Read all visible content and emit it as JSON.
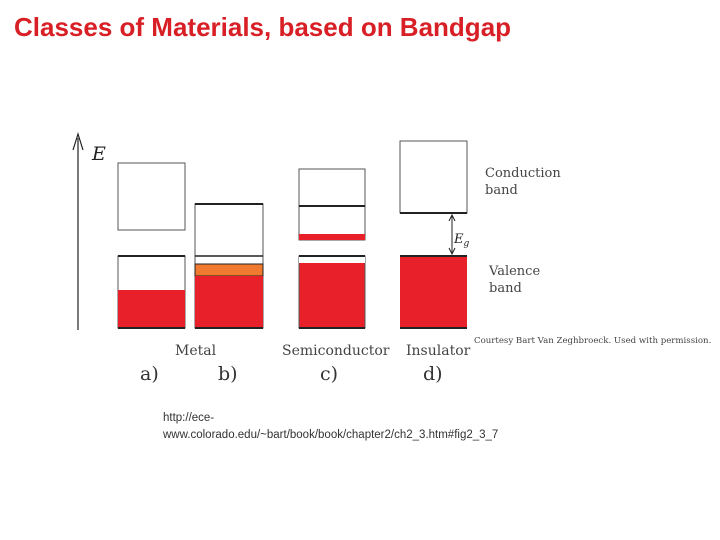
{
  "title": "Classes of Materials, based on Bandgap",
  "diagram": {
    "axis_label": "E",
    "gap_label": "E",
    "gap_label_sub": "g",
    "conduction_label": [
      "Conduction",
      "band"
    ],
    "valence_label": [
      "Valence",
      "band"
    ],
    "credit": "Courtesy Bart Van Zeghbroeck. Used with permission.",
    "category_labels": [
      "Metal",
      "Semiconductor",
      "Insulator"
    ],
    "panel_labels": [
      "a)",
      "b)",
      "c)",
      "d)"
    ]
  },
  "source_url": {
    "line1": "http://ece-",
    "line2": "www.colorado.edu/~bart/book/book/chapter2/ch2_3.htm#fig2_3_7"
  },
  "colors": {
    "title": "#d81f26",
    "filled_band": "#e8202a",
    "partial_band": "#f07a30",
    "line": "#222222"
  }
}
